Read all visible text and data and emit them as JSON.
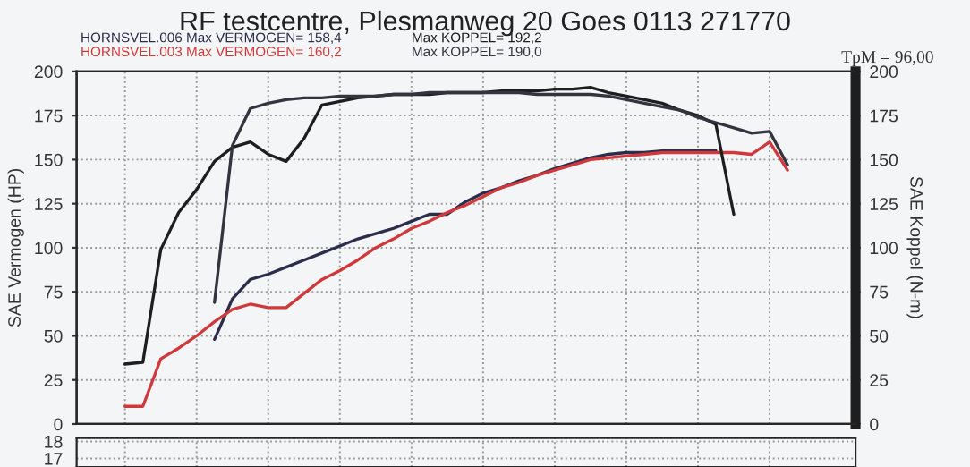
{
  "chart_data": [
    {
      "type": "line",
      "title": "RF testcentre, Plesmanweg 20 Goes 0113 271770",
      "ylabel": "SAE Vermogen (HP)",
      "y2label": "SAE Koppel (N-m)",
      "categories": [
        null,
        null,
        null,
        null,
        null,
        null,
        null,
        null,
        null,
        null,
        null,
        null,
        null,
        null,
        null,
        null,
        null,
        null,
        null,
        null,
        null,
        null,
        null,
        null,
        null,
        null,
        null,
        null,
        null,
        null,
        null,
        null,
        null,
        null,
        null,
        null,
        null,
        null
      ],
      "series": [
        {
          "color": "#2b2d4a",
          "values": [
            null,
            null,
            null,
            null,
            null,
            48,
            71,
            82,
            85,
            89,
            93,
            97,
            101,
            105,
            108,
            111,
            115,
            119,
            119,
            126,
            131,
            134,
            138,
            141,
            145,
            148,
            151,
            153,
            154,
            154,
            155,
            155,
            155,
            155,
            null,
            null,
            null,
            null
          ]
        },
        {
          "color": "#d0393b",
          "values": [
            10,
            10,
            37,
            43,
            50,
            58,
            65,
            68,
            66,
            66,
            74,
            82,
            87,
            93,
            100,
            105,
            111,
            115,
            120,
            124,
            129,
            134,
            137,
            141,
            144,
            147,
            150,
            151,
            152,
            153,
            154,
            154,
            154,
            154,
            154,
            153,
            160,
            144
          ]
        },
        {
          "color": "#1e1e1e",
          "values": [
            34,
            35,
            99,
            120,
            133,
            149,
            157,
            160,
            153,
            149,
            162,
            181,
            183,
            185,
            186,
            187,
            187,
            187,
            188,
            188,
            188,
            189,
            189,
            189,
            190,
            190,
            191,
            188,
            186,
            184,
            182,
            178,
            175,
            170,
            119,
            null,
            null,
            null
          ]
        },
        {
          "color": "#33343f",
          "values": [
            null,
            null,
            null,
            null,
            null,
            69,
            158,
            179,
            182,
            184,
            185,
            185,
            186,
            186,
            186,
            187,
            187,
            188,
            188,
            188,
            188,
            188,
            188,
            187,
            187,
            187,
            187,
            186,
            184,
            182,
            180,
            178,
            174,
            171,
            168,
            165,
            166,
            147
          ]
        }
      ],
      "ylim": [
        0,
        200
      ],
      "yticks": [
        0,
        25,
        50,
        75,
        100,
        125,
        150,
        175,
        200
      ],
      "y2lim": [
        0,
        200
      ],
      "y2ticks": [
        0,
        25,
        50,
        75,
        100,
        125,
        150,
        175,
        200
      ],
      "grid": true,
      "annotations": [
        "HORNSVEL.006 Max VERMOGEN= 158,4",
        "HORNSVEL.003 Max VERMOGEN= 160,2",
        "Max KOPPEL= 192,2",
        "Max KOPPEL= 190,0",
        "TpM = 96,00"
      ]
    },
    {
      "type": "line",
      "categories": [
        null,
        null,
        null,
        null,
        null,
        null,
        null,
        null,
        null,
        null,
        null,
        null,
        null,
        null,
        null,
        null,
        null,
        null,
        null,
        null,
        null,
        null,
        null,
        null,
        null,
        null,
        null,
        null,
        null,
        null,
        null,
        null,
        null,
        null,
        null,
        null,
        null,
        null
      ],
      "ylim": [
        16.5,
        18.2
      ],
      "yticks": [
        17,
        18
      ],
      "tick_labels": "y",
      "grid": true
    }
  ]
}
